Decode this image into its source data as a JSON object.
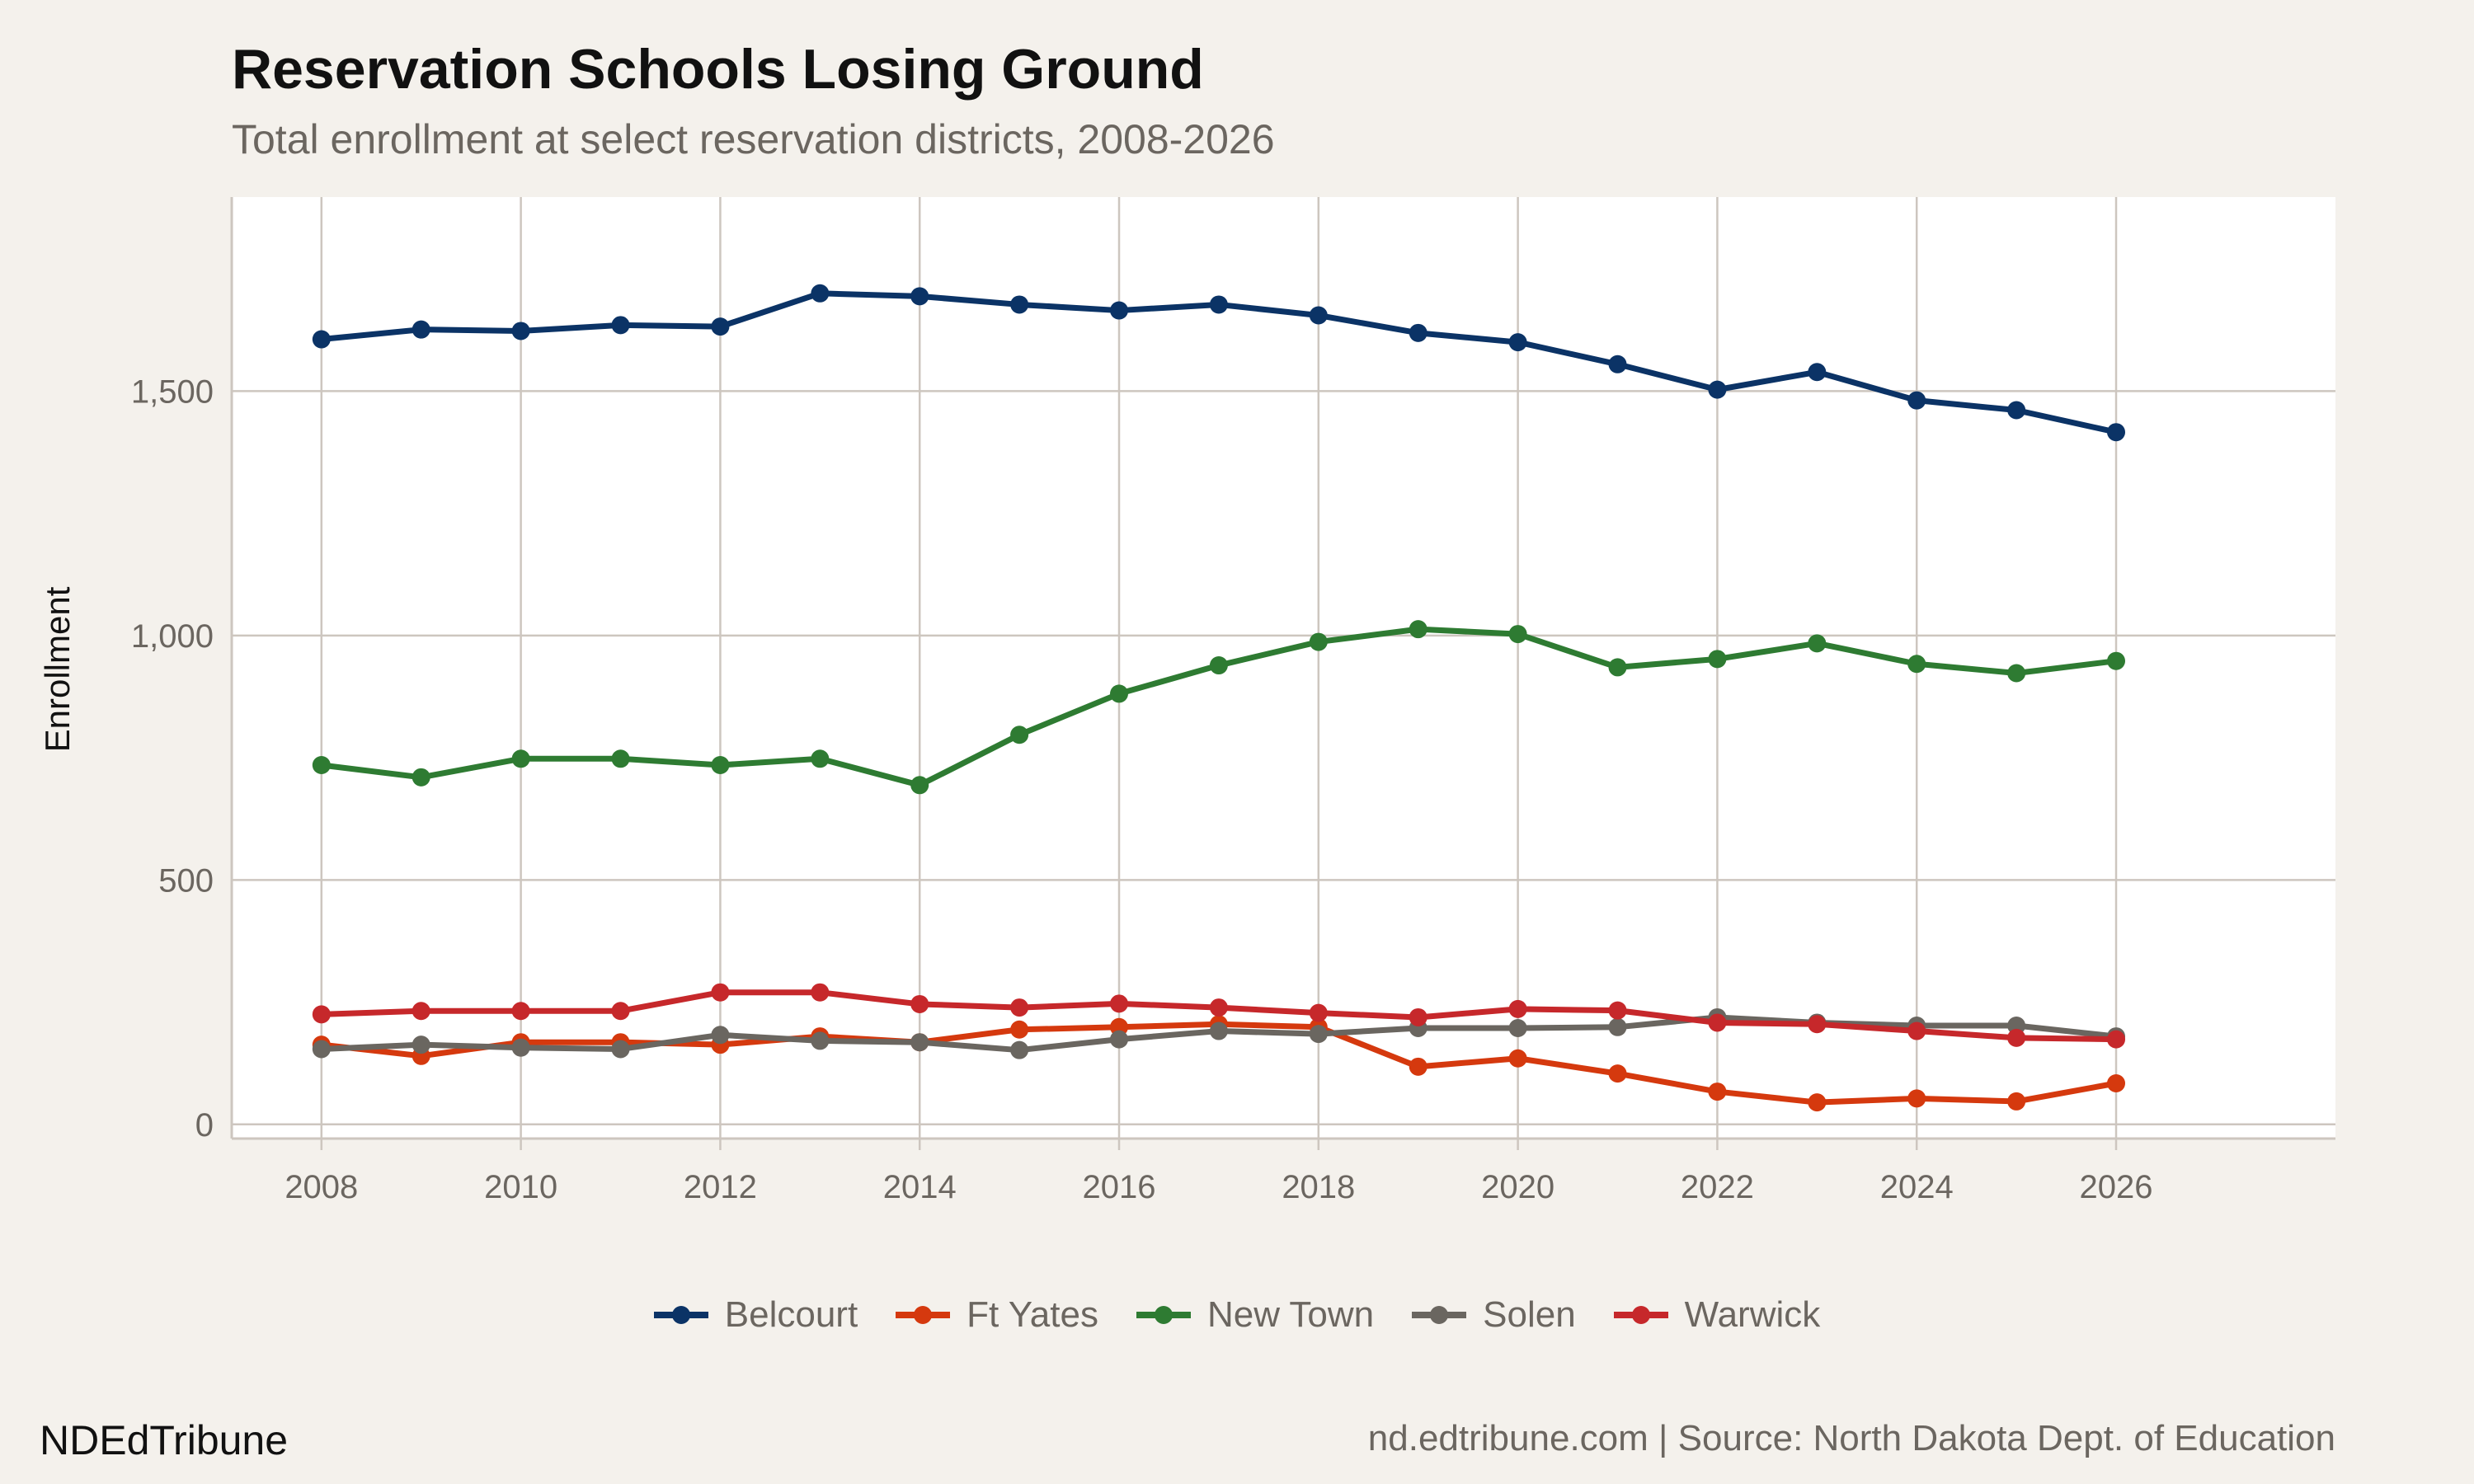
{
  "chart_data": {
    "type": "line",
    "title": "Reservation Schools Losing Ground",
    "subtitle": "Total enrollment at select reservation districts, 2008-2026",
    "xlabel": "",
    "ylabel": "Enrollment",
    "x": [
      2008,
      2009,
      2010,
      2011,
      2012,
      2013,
      2014,
      2015,
      2016,
      2017,
      2018,
      2019,
      2020,
      2021,
      2022,
      2023,
      2024,
      2025,
      2026
    ],
    "xticks": [
      "2008",
      "2010",
      "2012",
      "2014",
      "2016",
      "2018",
      "2020",
      "2022",
      "2024",
      "2026"
    ],
    "yticks": [
      "0",
      "500",
      "1,000",
      "1,500"
    ],
    "xlim": [
      2007.1,
      2028.2
    ],
    "ylim": [
      -29,
      1897
    ],
    "grid": true,
    "legend_position": "bottom",
    "series": [
      {
        "name": "Belcourt",
        "color": "#0b3366",
        "values": [
          1606,
          1626,
          1623,
          1635,
          1632,
          1700,
          1694,
          1677,
          1665,
          1677,
          1655,
          1619,
          1600,
          1555,
          1503,
          1539,
          1481,
          1461,
          1416
        ]
      },
      {
        "name": "Ft Yates",
        "color": "#d5390e",
        "values": [
          163,
          140,
          168,
          168,
          163,
          180,
          168,
          194,
          199,
          205,
          199,
          118,
          135,
          104,
          67,
          45,
          53,
          47,
          84
        ]
      },
      {
        "name": "New Town",
        "color": "#2e7b32",
        "values": [
          735,
          710,
          748,
          748,
          735,
          748,
          694,
          797,
          881,
          939,
          987,
          1013,
          1003,
          935,
          952,
          984,
          942,
          923,
          948
        ]
      },
      {
        "name": "Solen",
        "color": "#6a6660",
        "values": [
          154,
          163,
          157,
          154,
          183,
          171,
          168,
          152,
          174,
          191,
          185,
          197,
          197,
          199,
          219,
          208,
          202,
          202,
          180
        ]
      },
      {
        "name": "Warwick",
        "color": "#c6282b",
        "values": [
          225,
          232,
          232,
          232,
          270,
          270,
          246,
          239,
          247,
          239,
          228,
          219,
          236,
          233,
          208,
          205,
          191,
          177,
          174
        ]
      }
    ]
  },
  "footer": {
    "brand": "NDEdTribune",
    "source": "nd.edtribune.com | Source: North Dakota Dept. of Education"
  }
}
